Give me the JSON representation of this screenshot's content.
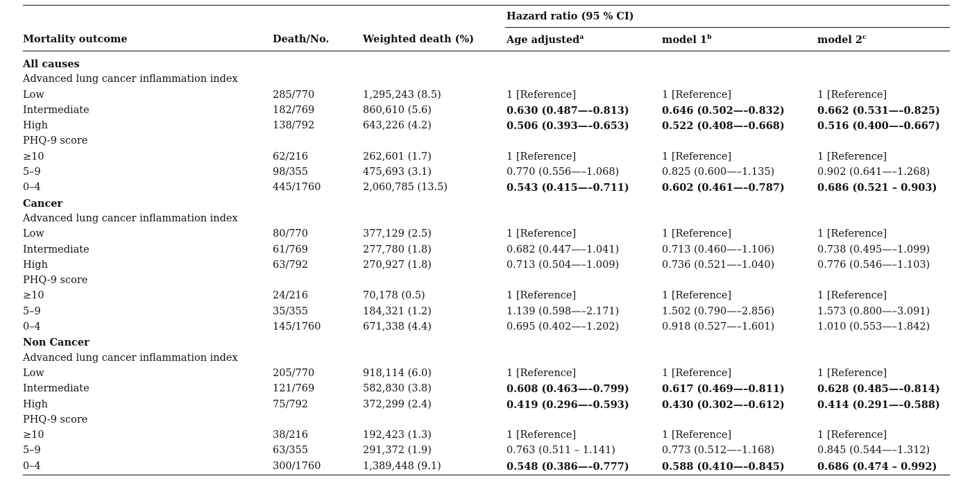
{
  "header": {
    "group_label": "Hazard ratio (95 % CI)",
    "col_outcome": "Mortality outcome",
    "col_death": "Death/No.",
    "col_weighted": "Weighted death (%)",
    "col_age": "Age adjusted",
    "col_age_sup": "a",
    "col_m1": "model 1",
    "col_m1_sup": "b",
    "col_m2": "model 2",
    "col_m2_sup": "c"
  },
  "rows": [
    {
      "label": "All causes",
      "section": true
    },
    {
      "label": "Advanced lung cancer inflammation index"
    },
    {
      "label": "Low",
      "death": "285/770",
      "weighted": "1,295,243 (8.5)",
      "age": "1 [Reference]",
      "m1": "1 [Reference]",
      "m2": "1 [Reference]"
    },
    {
      "label": "Intermediate",
      "death": "182/769",
      "weighted": "860,610 (5.6)",
      "age": "0.630 (0.487—–0.813)",
      "m1": "0.646 (0.502—–0.832)",
      "m2": "0.662 (0.531—–0.825)",
      "bold": true
    },
    {
      "label": "High",
      "death": "138/792",
      "weighted": "643,226 (4.2)",
      "age": "0.506 (0.393—–0.653)",
      "m1": "0.522 (0.408—–0.668)",
      "m2": "0.516 (0.400—–0.667)",
      "bold": true
    },
    {
      "label": "PHQ-9 score"
    },
    {
      "label": "≥10",
      "death": "62/216",
      "weighted": "262,601 (1.7)",
      "age": "1 [Reference]",
      "m1": "1 [Reference]",
      "m2": "1 [Reference]"
    },
    {
      "label": "5–9",
      "death": "98/355",
      "weighted": "475,693 (3.1)",
      "age": "0.770 (0.556—–1.068)",
      "m1": "0.825 (0.600—–1.135)",
      "m2": "0.902 (0.641—–1.268)"
    },
    {
      "label": "0–4",
      "death": "445/1760",
      "weighted": "2,060,785 (13.5)",
      "age": "0.543 (0.415—–0.711)",
      "m1": "0.602 (0.461—–0.787)",
      "m2": "0.686 (0.521 – 0.903)",
      "bold": true
    },
    {
      "label": "Cancer",
      "section": true
    },
    {
      "label": "Advanced lung cancer inflammation index"
    },
    {
      "label": "Low",
      "death": "80/770",
      "weighted": "377,129 (2.5)",
      "age": "1 [Reference]",
      "m1": "1 [Reference]",
      "m2": "1 [Reference]"
    },
    {
      "label": "Intermediate",
      "death": "61/769",
      "weighted": "277,780 (1.8)",
      "age": "0.682 (0.447—–1.041)",
      "m1": "0.713 (0.460—–1.106)",
      "m2": "0.738 (0.495—–1.099)"
    },
    {
      "label": "High",
      "death": "63/792",
      "weighted": "270,927 (1.8)",
      "age": "0.713 (0.504—–1.009)",
      "m1": "0.736 (0.521—–1.040)",
      "m2": "0.776 (0.546—–1.103)"
    },
    {
      "label": "PHQ-9 score"
    },
    {
      "label": "≥10",
      "death": "24/216",
      "weighted": "70,178 (0.5)",
      "age": "1 [Reference]",
      "m1": "1 [Reference]",
      "m2": "1 [Reference]"
    },
    {
      "label": "5–9",
      "death": "35/355",
      "weighted": "184,321 (1.2)",
      "age": "1.139 (0.598—–2.171)",
      "m1": "1.502 (0.790—–2.856)",
      "m2": "1.573 (0.800—–3.091)"
    },
    {
      "label": "0–4",
      "death": "145/1760",
      "weighted": "671,338 (4.4)",
      "age": "0.695 (0.402—–1.202)",
      "m1": "0.918 (0.527—–1.601)",
      "m2": "1.010 (0.553—–1.842)"
    },
    {
      "label": "Non Cancer",
      "section": true
    },
    {
      "label": "Advanced lung cancer inflammation index"
    },
    {
      "label": "Low",
      "death": "205/770",
      "weighted": "918,114 (6.0)",
      "age": "1 [Reference]",
      "m1": "1 [Reference]",
      "m2": "1 [Reference]"
    },
    {
      "label": "Intermediate",
      "death": "121/769",
      "weighted": "582,830 (3.8)",
      "age": "0.608 (0.463—–0.799)",
      "m1": "0.617 (0.469—–0.811)",
      "m2": "0.628 (0.485—–0.814)",
      "bold": true
    },
    {
      "label": "High",
      "death": "75/792",
      "weighted": "372,299 (2.4)",
      "age": "0.419 (0.296—–0.593)",
      "m1": "0.430 (0.302—–0.612)",
      "m2": "0.414 (0.291—–0.588)",
      "bold": true
    },
    {
      "label": "PHQ-9 score"
    },
    {
      "label": "≥10",
      "death": "38/216",
      "weighted": "192,423 (1.3)",
      "age": "1 [Reference]",
      "m1": "1 [Reference]",
      "m2": "1 [Reference]"
    },
    {
      "label": "5–9",
      "death": "63/355",
      "weighted": "291,372 (1.9)",
      "age": "0.763 (0.511 – 1.141)",
      "m1": "0.773 (0.512—–1.168)",
      "m2": "0.845 (0.544—–1.312)"
    },
    {
      "label": "0–4",
      "death": "300/1760",
      "weighted": "1,389,448 (9.1)",
      "age": "0.548 (0.386—–0.777)",
      "m1": "0.588 (0.410—–0.845)",
      "m2": "0.686 (0.474 – 0.992)",
      "bold": true
    }
  ]
}
